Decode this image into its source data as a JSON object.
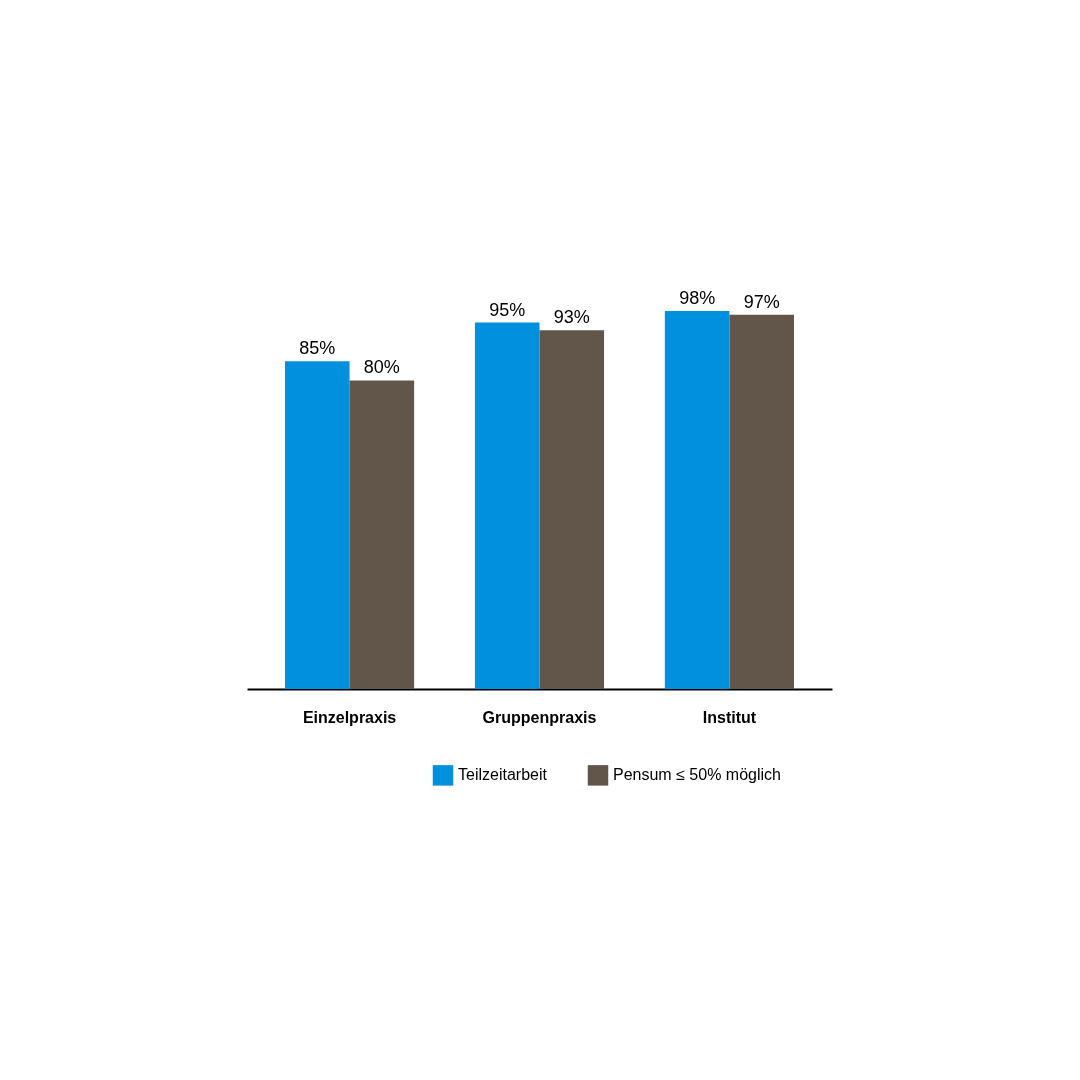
{
  "chart_data": {
    "type": "bar",
    "categories": [
      "Einzelpraxis",
      "Gruppenpraxis",
      "Institut"
    ],
    "series": [
      {
        "name": "Teilzeitarbeit",
        "color": "#0090dd",
        "values": [
          85,
          95,
          98
        ],
        "value_labels": [
          "85%",
          "95%",
          "98%"
        ]
      },
      {
        "name": "Pensum ≤ 50% möglich",
        "color": "#62554a",
        "values": [
          80,
          93,
          97
        ],
        "value_labels": [
          "80%",
          "93%",
          "97%"
        ]
      }
    ],
    "tick_labels": "x",
    "legend": "bottom right",
    "grid": false
  }
}
